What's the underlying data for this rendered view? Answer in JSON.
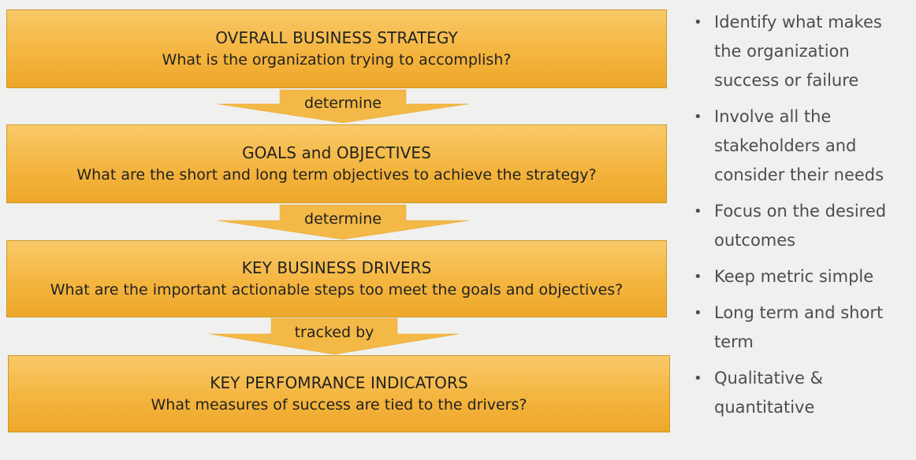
{
  "boxes": [
    {
      "title": "OVERALL BUSINESS STRATEGY",
      "question": "What is the organization trying to accomplish?"
    },
    {
      "title": "GOALS and OBJECTIVES",
      "question": "What are the short and long term objectives to achieve the strategy?"
    },
    {
      "title": "KEY BUSINESS DRIVERS",
      "question": "What are the important actionable steps too meet the goals and objectives?"
    },
    {
      "title": "KEY PERFOMRANCE INDICATORS",
      "question": "What measures of success are tied to the drivers?"
    }
  ],
  "arrows": [
    {
      "label": "determine"
    },
    {
      "label": "determine"
    },
    {
      "label": "tracked by"
    }
  ],
  "bullets": [
    "Identify what makes the organization success or failure",
    "Involve all the stakeholders and consider their needs",
    "Focus on the desired outcomes",
    "Keep metric simple",
    "Long term and short term",
    "Qualitative & quantitative"
  ],
  "colors": {
    "box_fill": "#f4b53f",
    "arrow_fill": "#f3b845",
    "background": "#f0f0ee",
    "bullet_text": "#4d4d4d"
  }
}
